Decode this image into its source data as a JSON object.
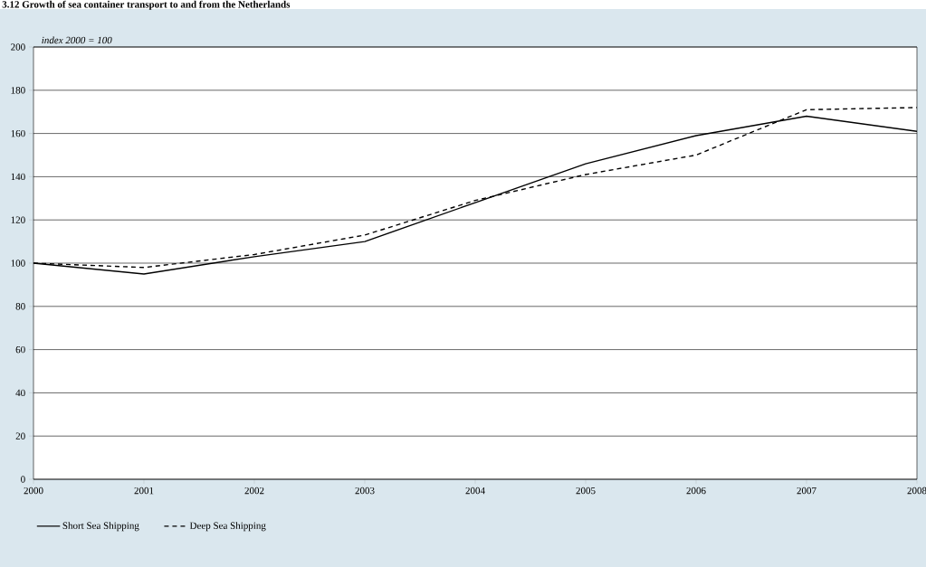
{
  "chart_data": {
    "type": "line",
    "title": "3.12 Growth of sea container transport to and from the Netherlands",
    "ylabel": "index 2000 = 100",
    "x": [
      2000,
      2001,
      2002,
      2003,
      2004,
      2005,
      2006,
      2007,
      2008
    ],
    "series": [
      {
        "name": "Short Sea Shipping",
        "color": "#000000",
        "line_style": "solid",
        "values": [
          100,
          95,
          103,
          110,
          128,
          146,
          159,
          168,
          161
        ]
      },
      {
        "name": "Deep Sea Shipping",
        "color": "#000000",
        "line_style": "dashed",
        "values": [
          100,
          98,
          104,
          113,
          129,
          141,
          150,
          171,
          172
        ]
      }
    ],
    "xlim": [
      2000,
      2008
    ],
    "xticks": [
      2000,
      2001,
      2002,
      2003,
      2004,
      2005,
      2006,
      2007,
      2008
    ],
    "ylim": [
      0,
      200
    ],
    "yticks": [
      0,
      20,
      40,
      60,
      80,
      100,
      120,
      140,
      160,
      180,
      200
    ],
    "grid": "y",
    "legend": "bottom left"
  }
}
